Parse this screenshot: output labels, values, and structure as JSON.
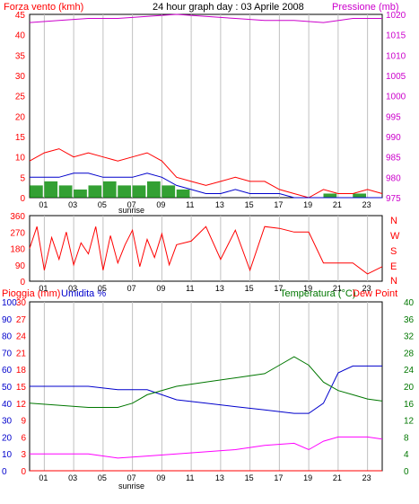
{
  "colors": {
    "wind": "#ff0000",
    "gust": "#dd0000",
    "wind_avg": "#0000cc",
    "gust_bars": "#008800",
    "pressure": "#cc00cc",
    "direction": "#ff0000",
    "rain": "#ff0000",
    "humidity": "#0000cc",
    "temperature": "#007700",
    "dewpoint": "#ff00ff",
    "grid": "#c0c0c0",
    "axis": "#000000"
  },
  "header": {
    "wind_label": "Forza vento (kmh)",
    "title": "24 hour graph day : 03 Aprile 2008",
    "pressure_label": "Pressione (mb)"
  },
  "middle": {
    "compass_labels": [
      "N",
      "W",
      "S",
      "E",
      "N"
    ]
  },
  "bottom": {
    "rain_label": "Pioggia (mm)",
    "humidity_label": "Umidita %",
    "temp_label": "Temperatura (°C)",
    "dew_label": "Dew Point"
  },
  "sunrise_label": "sunrise",
  "chart_data": [
    {
      "type": "line",
      "x_ticks": [
        "01",
        "03",
        "05",
        "07",
        "09",
        "11",
        "13",
        "15",
        "17",
        "19",
        "21",
        "23"
      ],
      "series": [
        {
          "name": "Forza vento (kmh)",
          "axis": "left",
          "x": [
            0,
            1,
            2,
            3,
            4,
            5,
            6,
            7,
            8,
            9,
            10,
            11,
            12,
            13,
            14,
            15,
            16,
            17,
            18,
            19,
            20,
            21,
            22,
            23,
            24
          ],
          "values": [
            9,
            11,
            12,
            10,
            11,
            10,
            9,
            10,
            11,
            9,
            5,
            4,
            3,
            4,
            5,
            4,
            4,
            2,
            1,
            0,
            2,
            1,
            1,
            2,
            1
          ]
        },
        {
          "name": "avg",
          "axis": "left",
          "x": [
            0,
            1,
            2,
            3,
            4,
            5,
            6,
            7,
            8,
            9,
            10,
            11,
            12,
            13,
            14,
            15,
            16,
            17,
            18,
            19,
            20,
            21,
            22,
            23,
            24
          ],
          "values": [
            5,
            5,
            5,
            6,
            6,
            5,
            5,
            5,
            6,
            5,
            3,
            2,
            1,
            1,
            2,
            1,
            1,
            1,
            0,
            0,
            0,
            0,
            0,
            0,
            0
          ]
        },
        {
          "name": "Pressione (mb)",
          "axis": "right",
          "x": [
            0,
            2,
            4,
            6,
            8,
            10,
            12,
            14,
            16,
            18,
            20,
            22,
            24
          ],
          "values": [
            1018,
            1018.5,
            1019,
            1019,
            1019.5,
            1020,
            1019.5,
            1019,
            1018.5,
            1018.5,
            1018,
            1019,
            1019
          ]
        }
      ],
      "gust_bars": {
        "x": [
          0,
          1,
          2,
          3,
          4,
          5,
          6,
          7,
          8,
          9,
          10,
          20,
          22
        ],
        "values": [
          3,
          4,
          3,
          2,
          3,
          4,
          3,
          3,
          4,
          3,
          2,
          1,
          1
        ]
      },
      "y_left_ticks": [
        0,
        5,
        10,
        15,
        20,
        25,
        30,
        35,
        40,
        45
      ],
      "ylim_left": [
        0,
        45
      ],
      "y_right_ticks": [
        975,
        980,
        985,
        990,
        995,
        1000,
        1005,
        1010,
        1015,
        1020
      ],
      "ylim_right": [
        975,
        1020
      ]
    },
    {
      "type": "line",
      "x_ticks": [
        "01",
        "03",
        "05",
        "07",
        "09",
        "11",
        "13",
        "15",
        "17",
        "19",
        "21",
        "23"
      ],
      "series": [
        {
          "name": "direction",
          "x": [
            0,
            0.5,
            1,
            1.5,
            2,
            2.5,
            3,
            3.5,
            4,
            4.5,
            5,
            5.5,
            6,
            6.5,
            7,
            7.5,
            8,
            8.5,
            9,
            9.5,
            10,
            11,
            12,
            13,
            14,
            15,
            16,
            17,
            18,
            19,
            20,
            21,
            22,
            23,
            24
          ],
          "values": [
            180,
            300,
            60,
            240,
            120,
            270,
            90,
            210,
            150,
            300,
            60,
            250,
            100,
            200,
            280,
            80,
            230,
            130,
            260,
            90,
            200,
            220,
            300,
            120,
            280,
            60,
            300,
            290,
            270,
            270,
            100,
            100,
            100,
            40,
            80
          ]
        }
      ],
      "y_ticks": [
        0,
        90,
        180,
        270,
        360
      ],
      "ylim": [
        0,
        360
      ]
    },
    {
      "type": "line",
      "x_ticks": [
        "01",
        "03",
        "05",
        "07",
        "09",
        "11",
        "13",
        "15",
        "17",
        "19",
        "21",
        "23"
      ],
      "series": [
        {
          "name": "Umidita %",
          "axis": "left_outer",
          "x": [
            0,
            2,
            4,
            6,
            8,
            10,
            12,
            14,
            16,
            18,
            19,
            20,
            21,
            22,
            23,
            24
          ],
          "values": [
            50,
            50,
            50,
            48,
            48,
            42,
            40,
            38,
            36,
            34,
            34,
            40,
            58,
            62,
            62,
            62
          ]
        },
        {
          "name": "Temperatura (°C)",
          "axis": "right",
          "x": [
            0,
            2,
            4,
            6,
            7,
            8,
            10,
            12,
            14,
            16,
            17,
            18,
            19,
            20,
            21,
            22,
            23,
            24
          ],
          "values": [
            16,
            15.5,
            15,
            15,
            16,
            18,
            20,
            21,
            22,
            23,
            25,
            27,
            25,
            21,
            19,
            18,
            17,
            16.5
          ]
        },
        {
          "name": "Dew Point",
          "axis": "right",
          "x": [
            0,
            2,
            4,
            6,
            8,
            10,
            12,
            14,
            16,
            18,
            19,
            20,
            21,
            22,
            23,
            24
          ],
          "values": [
            4,
            4,
            4,
            3,
            3.5,
            4,
            4.5,
            5,
            6,
            6.5,
            5,
            7,
            8,
            8,
            8,
            7.5
          ]
        },
        {
          "name": "Pioggia (mm)",
          "axis": "left_inner",
          "x": [
            0,
            24
          ],
          "values": [
            0,
            0
          ]
        }
      ],
      "y_left_outer_ticks": [
        0,
        10,
        20,
        30,
        40,
        50,
        60,
        70,
        80,
        90,
        100
      ],
      "ylim_left_outer": [
        0,
        100
      ],
      "y_left_inner_ticks": [
        0,
        3,
        6,
        9,
        12,
        15,
        18,
        21,
        24,
        27,
        30
      ],
      "ylim_left_inner": [
        0,
        30
      ],
      "y_right_ticks": [
        0,
        4,
        8,
        12,
        16,
        20,
        24,
        28,
        32,
        36,
        40
      ],
      "ylim_right": [
        0,
        40
      ]
    }
  ]
}
